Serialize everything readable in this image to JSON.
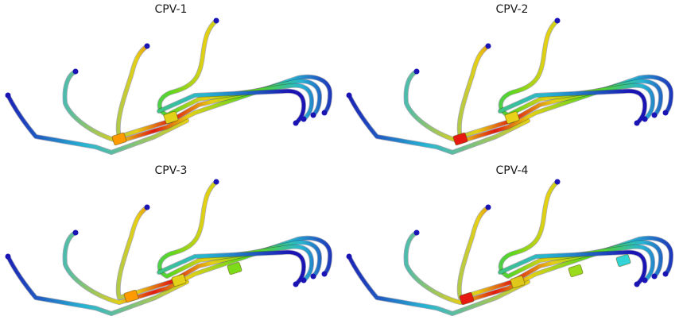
{
  "panels": [
    {
      "title": "CPV-1",
      "clamps": [
        "#e2d21a",
        "#ff9a00"
      ]
    },
    {
      "title": "CPV-2",
      "clamps": [
        "#e8d21a",
        "#e61a10"
      ]
    },
    {
      "title": "CPV-3",
      "clamps": [
        "#7ddc1a",
        "#e2d21a",
        "#ff9a00"
      ]
    },
    {
      "title": "CPV-4",
      "clamps": [
        "#32d4d8",
        "#9adc1a",
        "#e0c81a",
        "#e61a10"
      ]
    }
  ],
  "colors": {
    "low": "#1a14b4",
    "mid_low": "#27b6d2",
    "mid": "#5cd61e",
    "mid_high": "#e6d012",
    "high": "#e01a10"
  }
}
